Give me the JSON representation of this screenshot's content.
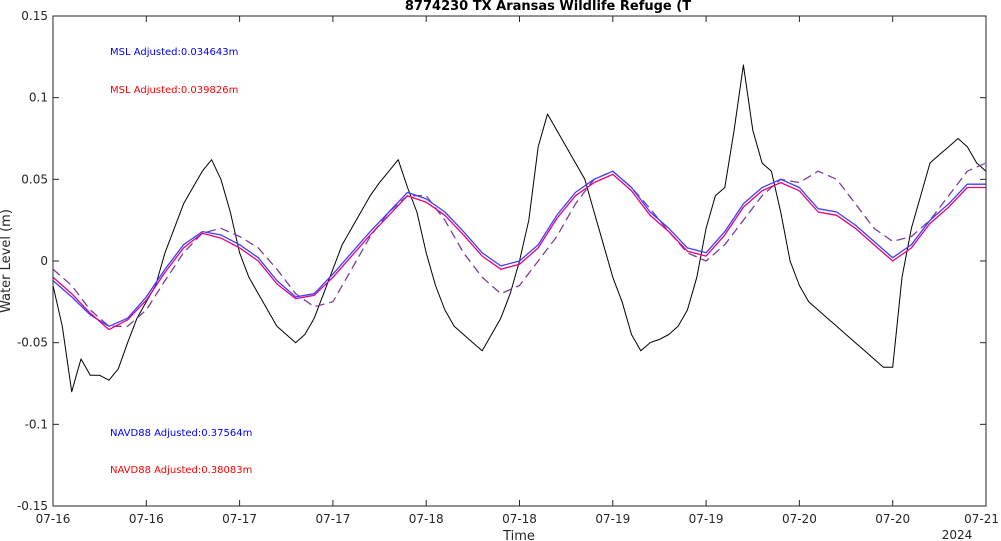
{
  "chart_data": {
    "type": "line",
    "title": "8774230 TX Aransas Wildlife Refuge (T",
    "xlabel": "Time",
    "ylabel": "Water Level (m)",
    "x_domain": [
      0,
      10
    ],
    "ylim": [
      -0.15,
      0.15
    ],
    "yticks": [
      -0.15,
      -0.1,
      -0.05,
      0,
      0.05,
      0.1,
      0.15
    ],
    "ytick_labels": [
      "-0.15",
      "-0.1",
      "-0.05",
      "0",
      "0.05",
      "0.1",
      "0.15"
    ],
    "xticks": [
      0,
      1,
      2,
      3,
      4,
      5,
      6,
      7,
      8,
      9,
      10
    ],
    "xtick_labels": [
      "07-16",
      "07-16",
      "07-17",
      "07-17",
      "07-18",
      "07-18",
      "07-19",
      "07-19",
      "07-20",
      "07-20",
      "07-21"
    ],
    "year_label": "2024",
    "grid": false,
    "annotations": [
      {
        "text": "MSL Adjusted:0.034643m",
        "color": "#0000ff"
      },
      {
        "text": "MSL Adjusted:0.039826m",
        "color": "#ff0000"
      },
      {
        "text": "NAVD88 Adjusted:0.37564m",
        "color": "#0000ff"
      },
      {
        "text": "NAVD88 Adjusted:0.38083m",
        "color": "#ff0000"
      }
    ],
    "series": [
      {
        "style": "observed",
        "color": "#000000",
        "dash": "none",
        "x": [
          0,
          0.1,
          0.2,
          0.3,
          0.4,
          0.5,
          0.6,
          0.7,
          0.8,
          0.9,
          1.0,
          1.1,
          1.2,
          1.3,
          1.4,
          1.5,
          1.6,
          1.7,
          1.8,
          1.9,
          2.0,
          2.1,
          2.2,
          2.3,
          2.4,
          2.5,
          2.6,
          2.7,
          2.8,
          2.9,
          3.0,
          3.1,
          3.2,
          3.3,
          3.4,
          3.5,
          3.6,
          3.7,
          3.8,
          3.9,
          4.0,
          4.1,
          4.2,
          4.3,
          4.4,
          4.5,
          4.6,
          4.7,
          4.8,
          4.9,
          5.0,
          5.1,
          5.2,
          5.3,
          5.4,
          5.5,
          5.6,
          5.7,
          5.8,
          5.9,
          6.0,
          6.1,
          6.2,
          6.3,
          6.4,
          6.5,
          6.6,
          6.7,
          6.8,
          6.9,
          7.0,
          7.1,
          7.2,
          7.3,
          7.4,
          7.5,
          7.6,
          7.7,
          7.8,
          7.9,
          8.0,
          8.1,
          8.2,
          8.3,
          8.4,
          8.5,
          8.6,
          8.7,
          8.8,
          8.9,
          9.0,
          9.1,
          9.2,
          9.3,
          9.4,
          9.5,
          9.6,
          9.7,
          9.8,
          9.9,
          10.0
        ],
        "y": [
          -0.015,
          -0.04,
          -0.08,
          -0.06,
          -0.07,
          -0.07,
          -0.073,
          -0.066,
          -0.05,
          -0.035,
          -0.025,
          -0.015,
          0.005,
          0.02,
          0.035,
          0.045,
          0.055,
          0.062,
          0.05,
          0.03,
          0.005,
          -0.01,
          -0.02,
          -0.03,
          -0.04,
          -0.045,
          -0.05,
          -0.045,
          -0.035,
          -0.02,
          -0.005,
          0.01,
          0.02,
          0.03,
          0.04,
          0.048,
          0.055,
          0.062,
          0.045,
          0.03,
          0.005,
          -0.015,
          -0.03,
          -0.04,
          -0.045,
          -0.05,
          -0.055,
          -0.045,
          -0.035,
          -0.02,
          0.0,
          0.025,
          0.07,
          0.09,
          0.08,
          0.07,
          0.06,
          0.05,
          0.03,
          0.01,
          -0.01,
          -0.025,
          -0.045,
          -0.055,
          -0.05,
          -0.048,
          -0.045,
          -0.04,
          -0.03,
          -0.01,
          0.02,
          0.04,
          0.045,
          0.08,
          0.12,
          0.08,
          0.06,
          0.055,
          0.03,
          0.0,
          -0.015,
          -0.025,
          -0.03,
          -0.035,
          -0.04,
          -0.045,
          -0.05,
          -0.055,
          -0.06,
          -0.065,
          -0.065,
          -0.01,
          0.02,
          0.04,
          0.06,
          0.065,
          0.07,
          0.075,
          0.07,
          0.06,
          0.055
        ]
      },
      {
        "style": "predicted-dashed",
        "color": "#7b3f9e",
        "dash": "9,5",
        "x": [
          0,
          0.2,
          0.4,
          0.6,
          0.8,
          1.0,
          1.2,
          1.4,
          1.6,
          1.8,
          2.0,
          2.2,
          2.4,
          2.6,
          2.8,
          3.0,
          3.2,
          3.4,
          3.6,
          3.8,
          4.0,
          4.2,
          4.4,
          4.6,
          4.8,
          5.0,
          5.2,
          5.4,
          5.6,
          5.8,
          6.0,
          6.2,
          6.4,
          6.6,
          6.8,
          7.0,
          7.2,
          7.4,
          7.6,
          7.8,
          8.0,
          8.2,
          8.4,
          8.6,
          8.8,
          9.0,
          9.2,
          9.4,
          9.6,
          9.8,
          10.0
        ],
        "y": [
          -0.005,
          -0.015,
          -0.03,
          -0.04,
          -0.04,
          -0.03,
          -0.012,
          0.005,
          0.017,
          0.02,
          0.015,
          0.008,
          -0.005,
          -0.02,
          -0.028,
          -0.025,
          -0.005,
          0.015,
          0.03,
          0.04,
          0.04,
          0.025,
          0.005,
          -0.01,
          -0.02,
          -0.015,
          0.0,
          0.015,
          0.035,
          0.05,
          0.055,
          0.045,
          0.032,
          0.018,
          0.005,
          0.0,
          0.01,
          0.025,
          0.04,
          0.05,
          0.048,
          0.055,
          0.05,
          0.035,
          0.02,
          0.012,
          0.015,
          0.025,
          0.04,
          0.055,
          0.06
        ]
      },
      {
        "style": "predicted-blue",
        "color": "#3f3fff",
        "dash": "none",
        "x": [
          0,
          0.2,
          0.4,
          0.6,
          0.8,
          1.0,
          1.2,
          1.4,
          1.6,
          1.8,
          2.0,
          2.2,
          2.4,
          2.6,
          2.8,
          3.0,
          3.2,
          3.4,
          3.6,
          3.8,
          4.0,
          4.2,
          4.4,
          4.6,
          4.8,
          5.0,
          5.2,
          5.4,
          5.6,
          5.8,
          6.0,
          6.2,
          6.4,
          6.6,
          6.8,
          7.0,
          7.2,
          7.4,
          7.6,
          7.8,
          8.0,
          8.2,
          8.4,
          8.6,
          8.8,
          9.0,
          9.2,
          9.4,
          9.6,
          9.8,
          10.0
        ],
        "y": [
          -0.012,
          -0.022,
          -0.033,
          -0.04,
          -0.035,
          -0.022,
          -0.005,
          0.01,
          0.018,
          0.016,
          0.01,
          0.002,
          -0.012,
          -0.022,
          -0.02,
          -0.008,
          0.005,
          0.018,
          0.03,
          0.042,
          0.038,
          0.03,
          0.018,
          0.005,
          -0.003,
          0.0,
          0.01,
          0.028,
          0.042,
          0.05,
          0.055,
          0.045,
          0.03,
          0.02,
          0.008,
          0.005,
          0.018,
          0.035,
          0.045,
          0.05,
          0.045,
          0.032,
          0.03,
          0.022,
          0.012,
          0.002,
          0.01,
          0.025,
          0.035,
          0.047,
          0.047
        ]
      },
      {
        "style": "predicted-red",
        "color": "#e6007e",
        "dash": "none",
        "x": [
          0,
          0.2,
          0.4,
          0.6,
          0.8,
          1.0,
          1.2,
          1.4,
          1.6,
          1.8,
          2.0,
          2.2,
          2.4,
          2.6,
          2.8,
          3.0,
          3.2,
          3.4,
          3.6,
          3.8,
          4.0,
          4.2,
          4.4,
          4.6,
          4.8,
          5.0,
          5.2,
          5.4,
          5.6,
          5.8,
          6.0,
          6.2,
          6.4,
          6.6,
          6.8,
          7.0,
          7.2,
          7.4,
          7.6,
          7.8,
          8.0,
          8.2,
          8.4,
          8.6,
          8.8,
          9.0,
          9.2,
          9.4,
          9.6,
          9.8,
          10.0
        ],
        "y": [
          -0.01,
          -0.02,
          -0.032,
          -0.042,
          -0.036,
          -0.024,
          -0.007,
          0.008,
          0.017,
          0.014,
          0.008,
          0.0,
          -0.014,
          -0.023,
          -0.021,
          -0.01,
          0.003,
          0.016,
          0.028,
          0.04,
          0.036,
          0.028,
          0.016,
          0.003,
          -0.005,
          -0.002,
          0.008,
          0.026,
          0.04,
          0.048,
          0.053,
          0.043,
          0.028,
          0.018,
          0.006,
          0.003,
          0.016,
          0.033,
          0.043,
          0.048,
          0.043,
          0.03,
          0.028,
          0.02,
          0.01,
          0.0,
          0.008,
          0.023,
          0.033,
          0.045,
          0.045
        ]
      }
    ]
  }
}
